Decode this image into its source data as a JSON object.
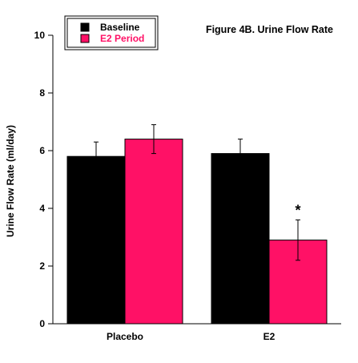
{
  "chart_data": {
    "type": "bar",
    "title": "Figure 4B. Urine Flow Rate",
    "xlabel": "",
    "ylabel": "Urine Flow Rate (ml/day)",
    "categories": [
      "Placebo",
      "E2"
    ],
    "ylim": [
      0,
      10
    ],
    "yticks": [
      0,
      2,
      4,
      6,
      8,
      10
    ],
    "series": [
      {
        "name": "Baseline",
        "color": "#000000",
        "values": [
          5.8,
          5.9
        ],
        "error": [
          0.5,
          0.5
        ]
      },
      {
        "name": "E2 Period",
        "color": "#ff1166",
        "values": [
          6.4,
          2.9
        ],
        "error": [
          0.5,
          0.7
        ]
      }
    ],
    "annotations": [
      {
        "text": "*",
        "category": "E2",
        "series": "E2 Period"
      }
    ],
    "legend": {
      "position": "top-left",
      "entries": [
        "Baseline",
        "E2 Period"
      ]
    },
    "grid": false
  }
}
